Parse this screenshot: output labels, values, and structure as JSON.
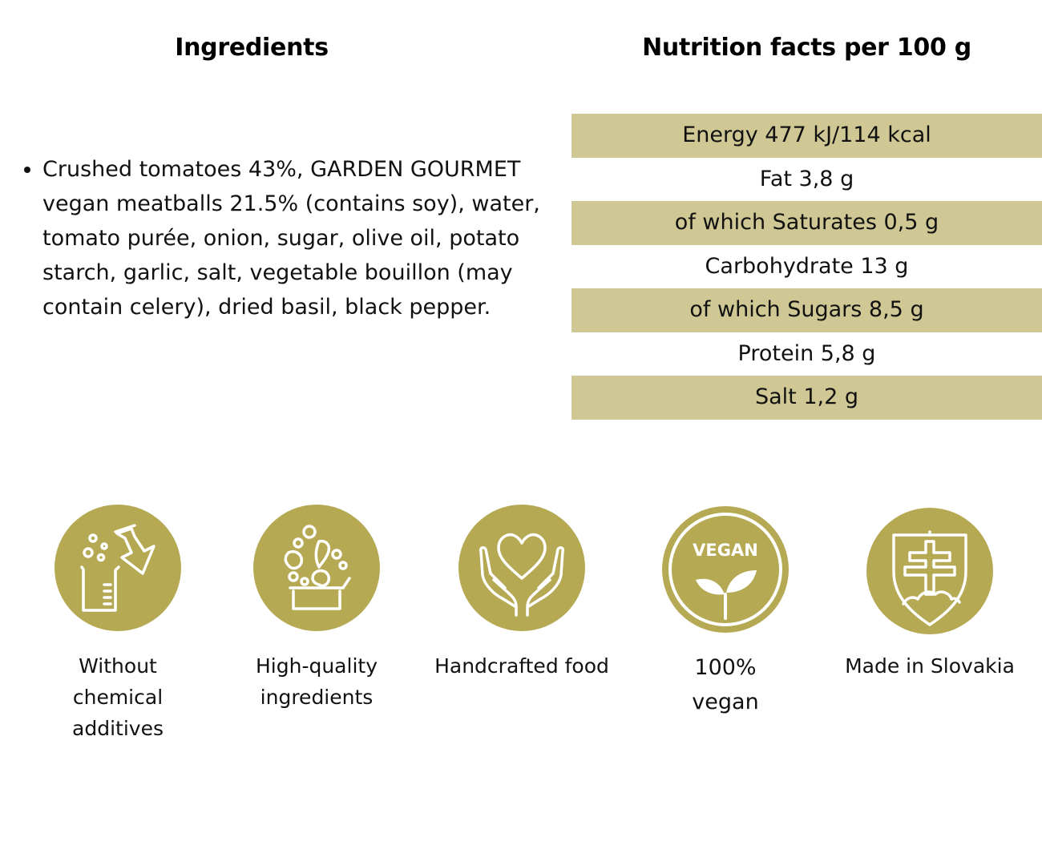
{
  "theme": {
    "accent": "#b5a954",
    "row_shade": "#cfc894"
  },
  "ingredients": {
    "heading": "Ingredients",
    "items": [
      "Crushed tomatoes 43%, GARDEN GOURMET vegan meatballs 21.5% (contains soy), water, tomato purée, onion, sugar, olive oil, potato starch, garlic, salt, vegetable bouillon (may contain celery), dried basil, black pepper."
    ]
  },
  "nutrition": {
    "heading": "Nutrition facts per 100 g",
    "rows": [
      "Energy 477 kJ/114 kcal",
      "Fat 3,8 g",
      "of which Saturates 0,5 g",
      "Carbohydrate 13 g",
      "of which Sugars 8,5 g",
      "Protein 5,8 g",
      "Salt 1,2 g"
    ]
  },
  "badges": [
    {
      "icon": "lab-flask-icon",
      "label": "Without chemical additives"
    },
    {
      "icon": "vegetables-box-icon",
      "label": "High-quality ingredients"
    },
    {
      "icon": "heart-hands-icon",
      "label": "Handcrafted food"
    },
    {
      "icon": "vegan-leaf-icon",
      "label": "100% vegan",
      "icon_text": "VEGAN"
    },
    {
      "icon": "slovak-coat-of-arms-icon",
      "label": "Made in Slovakia"
    }
  ]
}
